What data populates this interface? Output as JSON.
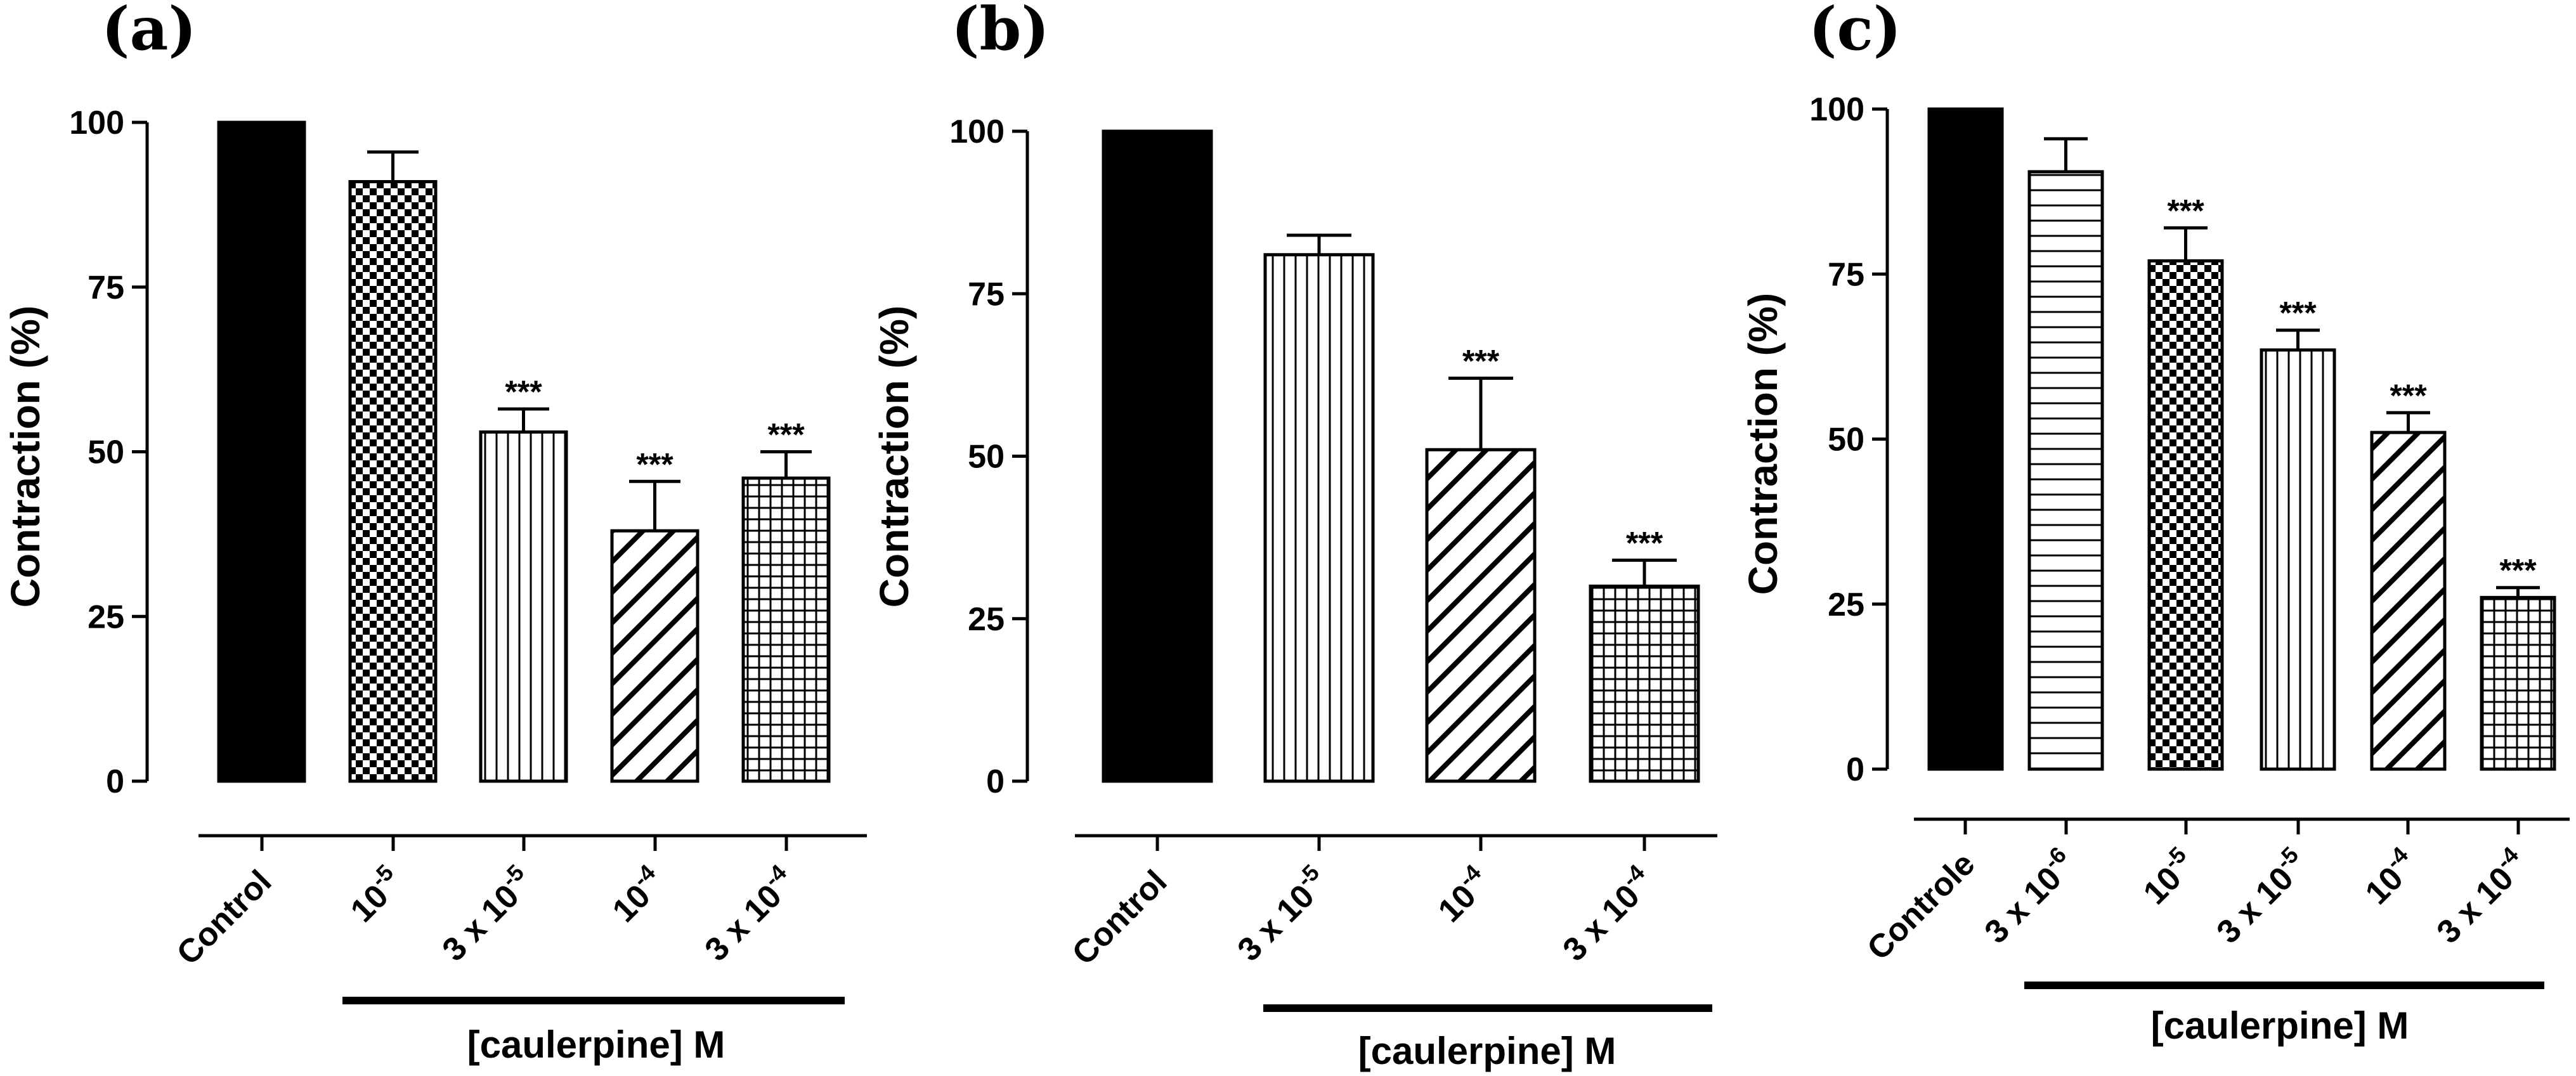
{
  "chart_data": [
    {
      "type": "bar",
      "panel": "(a)",
      "ylabel": "Contraction (%)",
      "ylim": [
        0,
        100
      ],
      "yticks": [
        "0",
        "25",
        "50",
        "75",
        "100"
      ],
      "group_label": "[caulerpine] M",
      "categories": [
        {
          "base": "Control",
          "exp": ""
        },
        {
          "base": "10",
          "exp": "-5"
        },
        {
          "base": "3 x 10",
          "exp": "-5"
        },
        {
          "base": "10",
          "exp": "-4"
        },
        {
          "base": "3 x 10",
          "exp": "-4"
        }
      ],
      "values": [
        100,
        91,
        53,
        38,
        46
      ],
      "errors": [
        0,
        4.5,
        3.5,
        7.5,
        4
      ],
      "patterns": [
        "solid",
        "checker",
        "vertical",
        "diagonal",
        "grid"
      ],
      "significance": [
        "",
        "",
        "***",
        "***",
        "***"
      ]
    },
    {
      "type": "bar",
      "panel": "(b)",
      "ylabel": "Contraction (%)",
      "ylim": [
        0,
        100
      ],
      "yticks": [
        "0",
        "25",
        "50",
        "75",
        "100"
      ],
      "group_label": "[caulerpine] M",
      "categories": [
        {
          "base": "Control",
          "exp": ""
        },
        {
          "base": "3 x 10",
          "exp": "-5"
        },
        {
          "base": "10",
          "exp": "-4"
        },
        {
          "base": "3 x 10",
          "exp": "-4"
        }
      ],
      "values": [
        100,
        81,
        51,
        30
      ],
      "errors": [
        0,
        3,
        11,
        4
      ],
      "patterns": [
        "solid",
        "vertical",
        "diagonal",
        "grid"
      ],
      "significance": [
        "",
        "",
        "***",
        "***"
      ]
    },
    {
      "type": "bar",
      "panel": "(c)",
      "ylabel": "Contraction (%)",
      "ylim": [
        0,
        100
      ],
      "yticks": [
        "0",
        "25",
        "50",
        "75",
        "100"
      ],
      "group_label": "[caulerpine] M",
      "categories": [
        {
          "base": "Controle",
          "exp": ""
        },
        {
          "base": "3 x 10",
          "exp": "-6"
        },
        {
          "base": "10",
          "exp": "-5"
        },
        {
          "base": "3 x 10",
          "exp": "-5"
        },
        {
          "base": "10",
          "exp": "-4"
        },
        {
          "base": "3 x 10",
          "exp": "-4"
        }
      ],
      "values": [
        100,
        90.5,
        77,
        63.5,
        51,
        26
      ],
      "errors": [
        0,
        5,
        5,
        3,
        3,
        1.5
      ],
      "patterns": [
        "solid",
        "horizontal",
        "checker",
        "vertical",
        "diagonal",
        "grid"
      ],
      "significance": [
        "",
        "",
        "***",
        "***",
        "***",
        "***"
      ]
    }
  ]
}
